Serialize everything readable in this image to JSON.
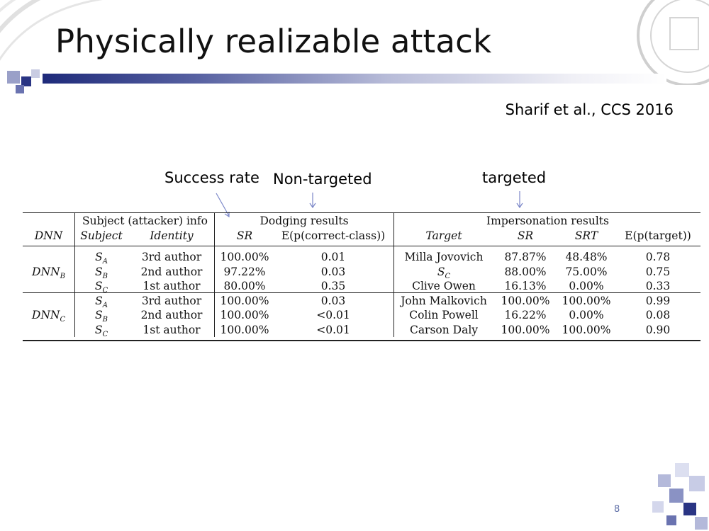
{
  "slide": {
    "title": "Physically realizable attack",
    "citation": "Sharif et al., CCS 2016",
    "page_number": "8"
  },
  "annotations": {
    "success_rate": "Success rate",
    "non_targeted": "Non-targeted",
    "targeted": "targeted"
  },
  "table": {
    "group_headers": {
      "subject_info": "Subject (attacker) info",
      "dodging": "Dodging results",
      "impersonation": "Impersonation results"
    },
    "columns": {
      "dnn": "DNN",
      "subject": "Subject",
      "identity": "Identity",
      "sr": "SR",
      "e_correct": "E(p(correct-class))",
      "target": "Target",
      "sr2": "SR",
      "srt": "SRT",
      "e_target": "E(p(target))"
    },
    "groups": [
      {
        "dnn": "DNN",
        "dnn_sub": "B",
        "rows": [
          {
            "subject": "S",
            "subject_sub": "A",
            "identity": "3rd author",
            "sr": "100.00%",
            "e_correct": "0.01",
            "target": "Milla Jovovich",
            "target_sub": "",
            "sr2": "87.87%",
            "srt": "48.48%",
            "e_target": "0.78"
          },
          {
            "subject": "S",
            "subject_sub": "B",
            "identity": "2nd author",
            "sr": "97.22%",
            "e_correct": "0.03",
            "target": "S",
            "target_sub": "C",
            "sr2": "88.00%",
            "srt": "75.00%",
            "e_target": "0.75"
          },
          {
            "subject": "S",
            "subject_sub": "C",
            "identity": "1st author",
            "sr": "80.00%",
            "e_correct": "0.35",
            "target": "Clive Owen",
            "target_sub": "",
            "sr2": "16.13%",
            "srt": "0.00%",
            "e_target": "0.33"
          }
        ]
      },
      {
        "dnn": "DNN",
        "dnn_sub": "C",
        "rows": [
          {
            "subject": "S",
            "subject_sub": "A",
            "identity": "3rd author",
            "sr": "100.00%",
            "e_correct": "0.03",
            "target": "John Malkovich",
            "target_sub": "",
            "sr2": "100.00%",
            "srt": "100.00%",
            "e_target": "0.99"
          },
          {
            "subject": "S",
            "subject_sub": "B",
            "identity": "2nd author",
            "sr": "100.00%",
            "e_correct": "<0.01",
            "target": "Colin Powell",
            "target_sub": "",
            "sr2": "16.22%",
            "srt": "0.00%",
            "e_target": "0.08"
          },
          {
            "subject": "S",
            "subject_sub": "C",
            "identity": "1st author",
            "sr": "100.00%",
            "e_correct": "<0.01",
            "target": "Carson Daly",
            "target_sub": "",
            "sr2": "100.00%",
            "srt": "100.00%",
            "e_target": "0.90"
          }
        ]
      }
    ]
  },
  "colors": {
    "band_dark": "#1e2a7a",
    "accent_blue": "#6070a8",
    "arrow": "#7a86c8"
  }
}
